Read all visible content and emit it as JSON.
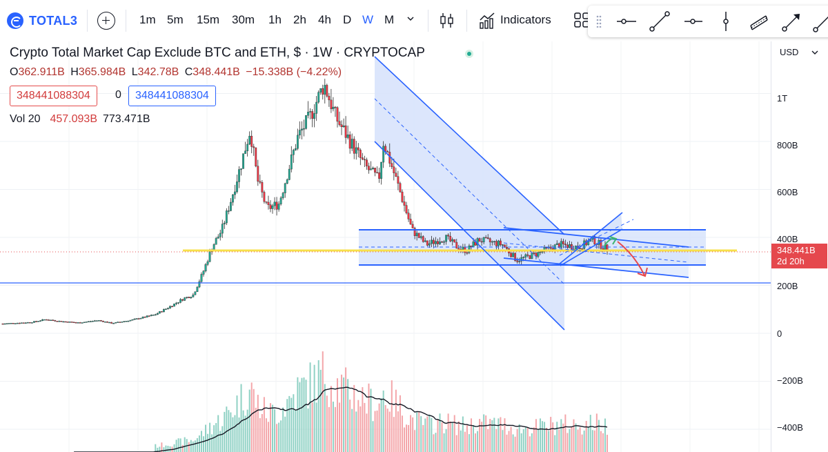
{
  "toolbar": {
    "symbol": "TOTAL3",
    "timeframes": [
      {
        "label": "1m",
        "active": false
      },
      {
        "label": "5m",
        "active": false
      },
      {
        "label": "15m",
        "active": false
      },
      {
        "label": "30m",
        "active": false
      },
      {
        "label": "1h",
        "active": false
      },
      {
        "label": "2h",
        "active": false
      },
      {
        "label": "4h",
        "active": false
      },
      {
        "label": "D",
        "active": false
      },
      {
        "label": "W",
        "active": true
      },
      {
        "label": "M",
        "active": false
      }
    ],
    "indicators_label": "Indicators",
    "icons": [
      "symbol-logo-icon",
      "add-symbol-icon",
      "chevron-down-icon",
      "candles-icon",
      "indicators-icon",
      "layout-icon"
    ]
  },
  "drawing_tools": [
    "grip-icon",
    "horizontal-line-icon",
    "trend-line-icon",
    "horizontal-ray-icon",
    "vertical-line-icon",
    "parallel-channel-icon",
    "arrow-icon",
    "brush-icon"
  ],
  "legend": {
    "title": "Crypto Total Market Cap Exclude BTC and ETH, $ · 1W · CRYPTOCAP",
    "ohlc": {
      "o_label": "O",
      "o": "362.911B",
      "h_label": "H",
      "h": "365.984B",
      "l_label": "L",
      "l": "342.78B",
      "c_label": "C",
      "c": "348.441B",
      "change": "−15.338B (−4.22%)"
    },
    "input_red": "348441088304",
    "input_zero": "0",
    "input_blue": "348441088304",
    "vol_label": "Vol 20",
    "vol_value": "457.093B",
    "vol_ma": "773.471B"
  },
  "price_scale": {
    "currency": "USD",
    "ticks": [
      "1T",
      "800B",
      "600B",
      "400B",
      "200B",
      "0",
      "−200B",
      "−400B"
    ],
    "last_price": "348.441B",
    "countdown": "2d 20h"
  },
  "colors": {
    "accent": "#2962ff",
    "up": "#22ab94",
    "down": "#f23645",
    "channel_fill": "#d6e2fb",
    "support_line": "#f7e04b",
    "arrow_green": "#3cb371",
    "arrow_red": "#e5484d"
  },
  "chart_data": {
    "type": "candlestick",
    "timeframe": "1W",
    "price_range": [
      -450,
      1150
    ],
    "price_unit": "B USD",
    "ticks": [
      1000,
      800,
      600,
      400,
      200,
      0,
      -200,
      -400
    ],
    "last_close": 348.441,
    "horizontal_levels": [
      210,
      360
    ],
    "close_path": [
      [
        0,
        40
      ],
      [
        0.06,
        46
      ],
      [
        0.09,
        58
      ],
      [
        0.12,
        50
      ],
      [
        0.16,
        44
      ],
      [
        0.2,
        54
      ],
      [
        0.23,
        42
      ],
      [
        0.27,
        55
      ],
      [
        0.32,
        78
      ],
      [
        0.35,
        110
      ],
      [
        0.38,
        145
      ],
      [
        0.4,
        160
      ],
      [
        0.42,
        250
      ],
      [
        0.44,
        360
      ],
      [
        0.46,
        430
      ],
      [
        0.48,
        560
      ],
      [
        0.5,
        700
      ],
      [
        0.52,
        850
      ],
      [
        0.535,
        640
      ],
      [
        0.555,
        520
      ],
      [
        0.58,
        540
      ],
      [
        0.6,
        680
      ],
      [
        0.62,
        820
      ],
      [
        0.645,
        900
      ],
      [
        0.675,
        1040
      ],
      [
        0.7,
        900
      ],
      [
        0.73,
        800
      ],
      [
        0.76,
        700
      ],
      [
        0.79,
        640
      ],
      [
        0.8,
        800
      ],
      [
        0.83,
        620
      ],
      [
        0.86,
        430
      ],
      [
        0.89,
        370
      ],
      [
        0.93,
        400
      ],
      [
        0.955,
        360
      ],
      [
        0.975,
        345
      ],
      [
        1.0,
        390
      ],
      [
        1.05,
        370
      ],
      [
        1.08,
        305
      ],
      [
        1.12,
        330
      ],
      [
        1.17,
        370
      ],
      [
        1.21,
        360
      ],
      [
        1.24,
        390
      ],
      [
        1.27,
        350
      ]
    ],
    "volume_ma": "20-period",
    "annotations": [
      {
        "type": "descending-channel"
      },
      {
        "type": "horizontal-range",
        "top": 440,
        "bottom": 290
      },
      {
        "type": "ascending-wedge"
      },
      {
        "type": "descending-channel-small"
      },
      {
        "type": "arrow",
        "color": "green",
        "direction": "up"
      },
      {
        "type": "arrow",
        "color": "red",
        "direction": "down"
      }
    ]
  }
}
